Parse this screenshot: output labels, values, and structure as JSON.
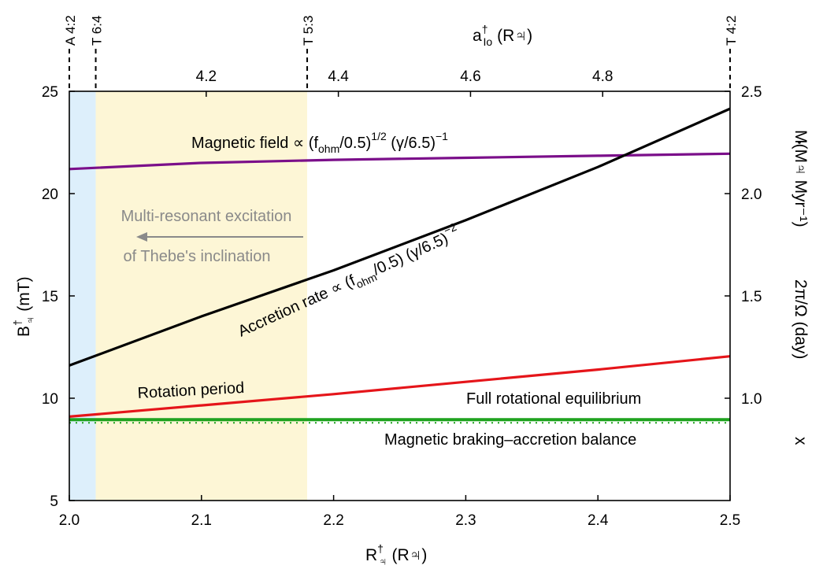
{
  "chart_data": {
    "type": "line",
    "x_axis": {
      "label": "R",
      "label_sup": "†",
      "label_sub": "♃",
      "label_unit": "(R♃)",
      "lim": [
        2.0,
        2.5
      ],
      "ticks": [
        2.0,
        2.1,
        2.2,
        2.3,
        2.4,
        2.5
      ],
      "tick_labels": [
        "2.0",
        "2.1",
        "2.2",
        "2.3",
        "2.4",
        "2.5"
      ]
    },
    "top_axis": {
      "label": "a",
      "label_sup": "†",
      "label_sub": "Io",
      "label_unit": "(R♃)",
      "tick_positions_x": [
        2.1036,
        2.2036,
        2.3036,
        2.4036
      ],
      "tick_labels": [
        "4.2",
        "4.4",
        "4.6",
        "4.8"
      ]
    },
    "y_axis_left": {
      "label": "B",
      "label_sup": "†",
      "label_sub": "♃",
      "label_unit": "(mT)",
      "lim": [
        5,
        25
      ],
      "ticks": [
        5,
        10,
        15,
        20,
        25
      ],
      "tick_labels": [
        "5",
        "10",
        "15",
        "20",
        "25"
      ]
    },
    "y_axis_right": {
      "lim": [
        0.5,
        2.5
      ],
      "ticks": [
        1.0,
        1.5,
        2.0,
        2.5
      ],
      "tick_labels": [
        "1.0",
        "1.5",
        "2.0",
        "2.5"
      ],
      "label_mdot": "M(M♃ Myr⁻¹)",
      "label_period": "2π/Ω (day)",
      "label_x": "x"
    },
    "resonances": [
      {
        "x": 2.0,
        "label": "A  4:2"
      },
      {
        "x": 2.02,
        "label": "T  6:4"
      },
      {
        "x": 2.18,
        "label": "T  5:3"
      },
      {
        "x": 2.5,
        "label": "T  4:2"
      }
    ],
    "shaded_regions": [
      {
        "x0": 2.0,
        "x1": 2.02,
        "color": "#ddeffb"
      },
      {
        "x0": 2.02,
        "x1": 2.18,
        "color": "#fdf6d6"
      }
    ],
    "series": [
      {
        "key": "magnetic",
        "color": "#7b0f8a",
        "x": [
          2.0,
          2.1,
          2.2,
          2.3,
          2.4,
          2.5
        ],
        "y": [
          21.2,
          21.5,
          21.65,
          21.75,
          21.85,
          21.95
        ]
      },
      {
        "key": "accretion",
        "color": "#000000",
        "x": [
          2.0,
          2.1,
          2.2,
          2.3,
          2.4,
          2.5
        ],
        "y": [
          11.6,
          14.0,
          16.25,
          18.7,
          21.3,
          24.15
        ]
      },
      {
        "key": "rotation",
        "color": "#e5151a",
        "x": [
          2.0,
          2.1,
          2.2,
          2.3,
          2.4,
          2.5
        ],
        "y": [
          9.1,
          9.65,
          10.2,
          10.8,
          11.4,
          12.05
        ]
      },
      {
        "key": "equilibrium",
        "color": "#1fa21f",
        "x": [
          2.0,
          2.5
        ],
        "y": [
          8.95,
          8.95
        ]
      }
    ],
    "annotations": {
      "magnetic_main": "Magnetic field ∝ (f",
      "magnetic_sub": "ohm",
      "magnetic_mid": "/0.5)",
      "magnetic_sup1": "1/2",
      "magnetic_gamma": " (γ/6.5)",
      "magnetic_sup2": "−1",
      "accretion_main": "Accretion rate ∝ (f",
      "accretion_sub": "ohm",
      "accretion_mid": "/0.5) (γ/6.5)",
      "accretion_sup": "−2",
      "rotation": "Rotation period",
      "full_equilibrium": "Full rotational equilibrium",
      "braking_balance": "Magnetic braking–accretion balance",
      "multi_resonant_1": "Multi-resonant excitation",
      "multi_resonant_2": "of Thebe's inclination"
    }
  }
}
